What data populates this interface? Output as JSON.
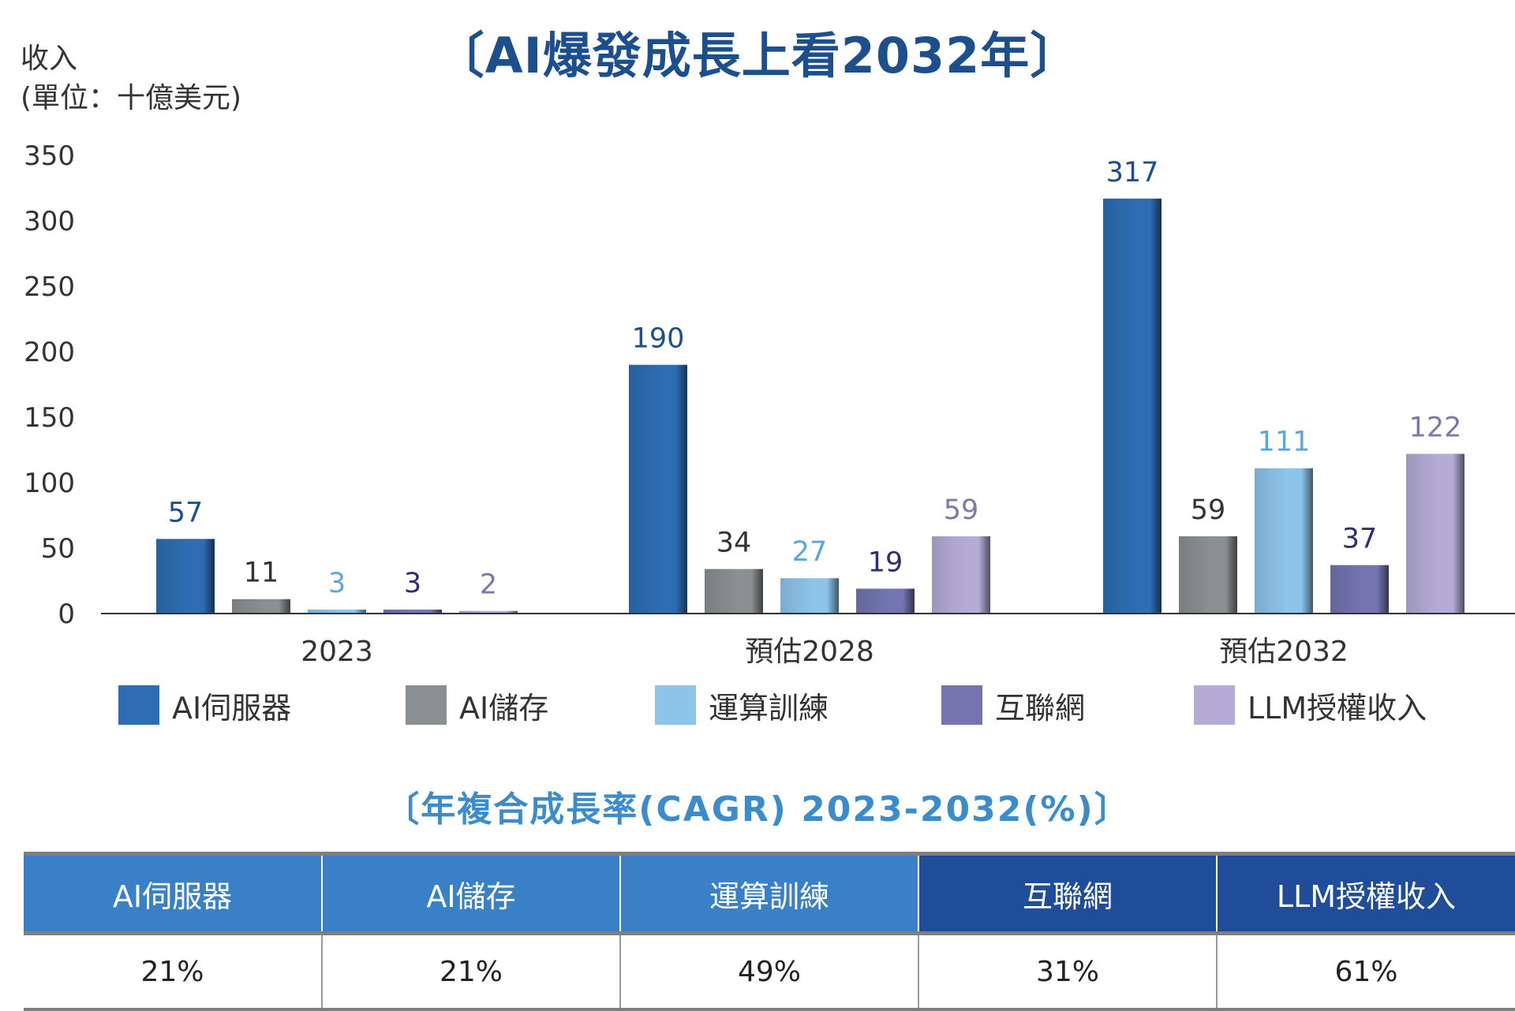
{
  "chart_data": {
    "type": "bar",
    "title": "〔AI爆發成長上看2032年〕",
    "ylabel": "收入\n(單位：十億美元)",
    "xlabel": "",
    "ylim": [
      0,
      350
    ],
    "yticks": [
      0,
      50,
      100,
      150,
      200,
      250,
      300,
      350
    ],
    "categories": [
      "2023",
      "預估2028",
      "預估2032"
    ],
    "series": [
      {
        "name": "AI伺服器",
        "values": [
          57,
          190,
          317
        ],
        "color": "#2e6db3",
        "label_color": "#1c4f8d"
      },
      {
        "name": "AI儲存",
        "values": [
          11,
          34,
          59
        ],
        "color": "#8a8f92",
        "label_color": "#333333"
      },
      {
        "name": "運算訓練",
        "values": [
          3,
          27,
          111
        ],
        "color": "#8dc4ea",
        "label_color": "#5aa7dc"
      },
      {
        "name": "互聯網",
        "values": [
          3,
          19,
          37
        ],
        "color": "#7275b0",
        "label_color": "#2e2f6e"
      },
      {
        "name": "LLM授權收入",
        "values": [
          2,
          59,
          122
        ],
        "color": "#b4acd6",
        "label_color": "#7c78a8"
      }
    ],
    "legend_position": "bottom",
    "grid": false
  },
  "cagr": {
    "title": "〔年複合成長率(CAGR) 2023-2032(%)〕",
    "headers": [
      "AI伺服器",
      "AI儲存",
      "運算訓練",
      "互聯網",
      "LLM授權收入"
    ],
    "header_colors": [
      "#3a80c6",
      "#3a80c6",
      "#3a80c6",
      "#1f4d9a",
      "#1f4d9a"
    ],
    "values": [
      "21%",
      "21%",
      "49%",
      "31%",
      "61%"
    ]
  }
}
